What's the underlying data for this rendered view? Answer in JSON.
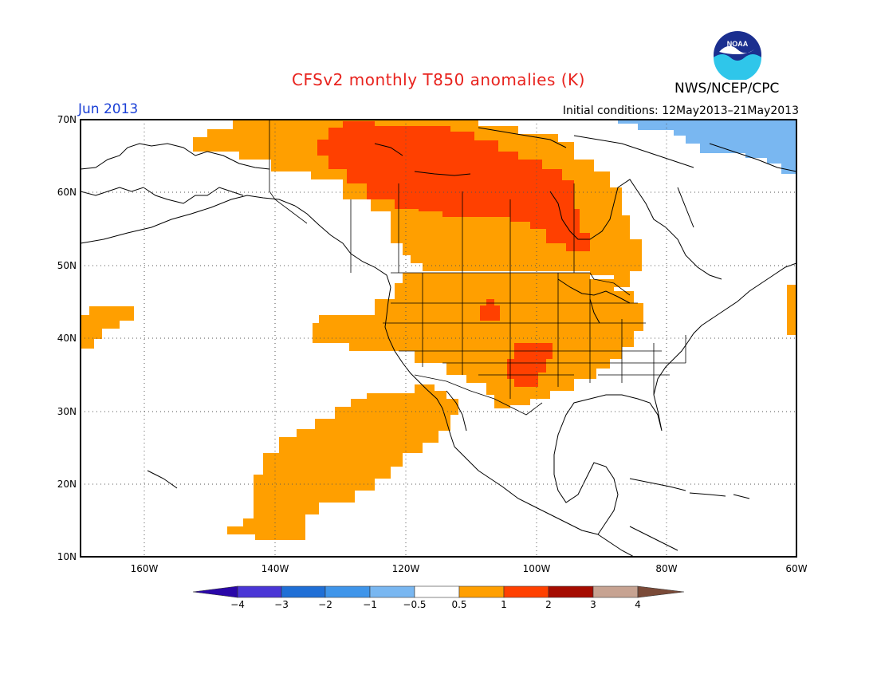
{
  "header": {
    "title": "CFSv2 monthly T850 anomalies (K)",
    "agency": "NWS/NCEP/CPC",
    "month": "Jun 2013",
    "initial_conditions": "Initial conditions: 12May2013–21May2013",
    "logo_text": "NOAA"
  },
  "map": {
    "lat_labels": [
      "70N",
      "60N",
      "50N",
      "40N",
      "30N",
      "20N",
      "10N"
    ],
    "lon_labels": [
      "160W",
      "140W",
      "120W",
      "100W",
      "80W",
      "60W"
    ],
    "lat_range": [
      10,
      70
    ],
    "lon_range": [
      -171,
      -60
    ],
    "gridlines": "dotted"
  },
  "legend": {
    "labels": [
      "−4",
      "−3",
      "−2",
      "−1",
      "−0.5",
      "0.5",
      "1",
      "2",
      "3",
      "4"
    ],
    "colors": [
      "#2a07a8",
      "#4a36d6",
      "#1f6fd6",
      "#3f95ea",
      "#79b7f1",
      "#ffffff",
      "#ff9f00",
      "#ff4000",
      "#a50b00",
      "#c7a392",
      "#7a4a38"
    ]
  },
  "colors": {
    "anomaly_0_5_to_1": "#ff9f00",
    "anomaly_1_to_2": "#ff4000",
    "anomaly_neg_0_5_to_neg_1": "#79b7f1",
    "title": "#e8231e",
    "month_label": "#1a3fd6"
  }
}
